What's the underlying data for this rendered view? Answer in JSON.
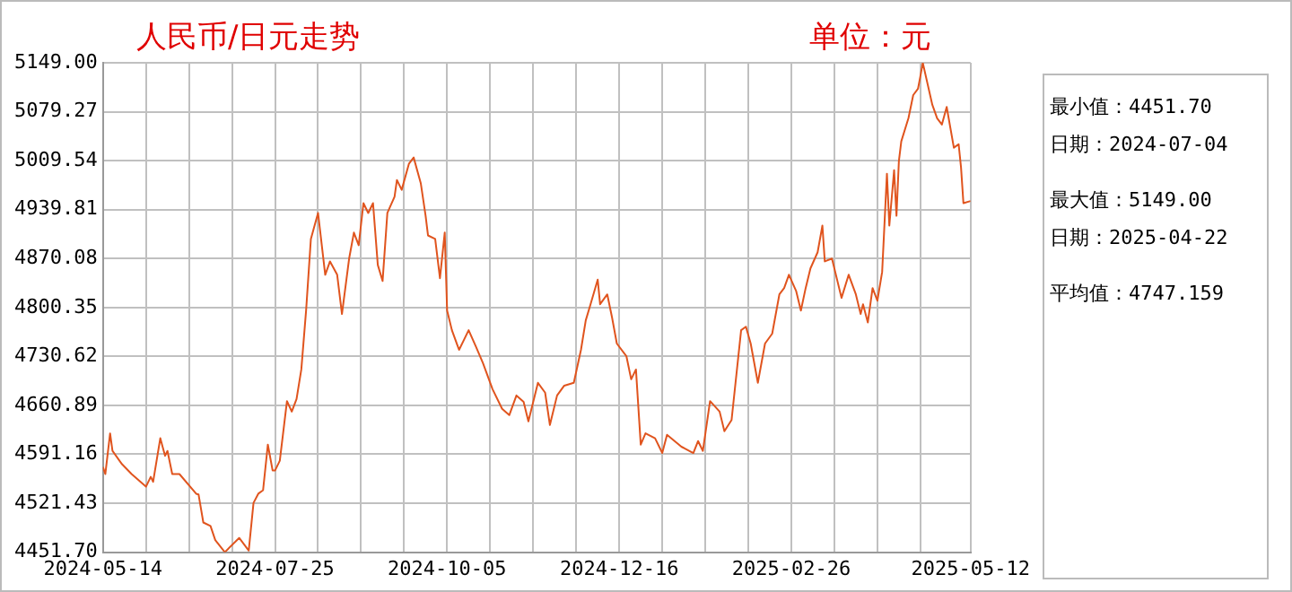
{
  "chart_data": {
    "type": "line",
    "title": "人民币/日元走势",
    "subtitle": "单位：元",
    "annotations": [
      "最小值：4451.70",
      "日期：2024-07-04",
      "最大值：5149.00",
      "日期：2025-04-22",
      "平均值：4747.159"
    ],
    "x": [
      "2024-05-14",
      "2024-05-15",
      "2024-05-17",
      "2024-05-18",
      "2024-05-22",
      "2024-05-26",
      "2024-06-01",
      "2024-06-03",
      "2024-06-04",
      "2024-06-07",
      "2024-06-09",
      "2024-06-10",
      "2024-06-12",
      "2024-06-15",
      "2024-06-22",
      "2024-06-23",
      "2024-06-25",
      "2024-06-28",
      "2024-06-30",
      "2024-07-04",
      "2024-07-10",
      "2024-07-14",
      "2024-07-16",
      "2024-07-18",
      "2024-07-20",
      "2024-07-22",
      "2024-07-24",
      "2024-07-25",
      "2024-07-27",
      "2024-07-30",
      "2024-08-01",
      "2024-08-03",
      "2024-08-05",
      "2024-08-07",
      "2024-08-09",
      "2024-08-12",
      "2024-08-15",
      "2024-08-17",
      "2024-08-20",
      "2024-08-22",
      "2024-08-25",
      "2024-08-27",
      "2024-08-29",
      "2024-08-31",
      "2024-09-02",
      "2024-09-04",
      "2024-09-06",
      "2024-09-08",
      "2024-09-10",
      "2024-09-13",
      "2024-09-14",
      "2024-09-16",
      "2024-09-19",
      "2024-09-21",
      "2024-09-24",
      "2024-09-26",
      "2024-09-27",
      "2024-09-30",
      "2024-10-02",
      "2024-10-04",
      "2024-10-05",
      "2024-10-07",
      "2024-10-10",
      "2024-10-12",
      "2024-10-14",
      "2024-10-17",
      "2024-10-20",
      "2024-10-24",
      "2024-10-28",
      "2024-10-31",
      "2024-11-03",
      "2024-11-06",
      "2024-11-08",
      "2024-11-12",
      "2024-11-15",
      "2024-11-17",
      "2024-11-20",
      "2024-11-23",
      "2024-11-27",
      "2024-11-30",
      "2024-12-02",
      "2024-12-04",
      "2024-12-07",
      "2024-12-08",
      "2024-12-11",
      "2024-12-13",
      "2024-12-15",
      "2024-12-19",
      "2024-12-21",
      "2024-12-23",
      "2024-12-25",
      "2024-12-27",
      "2024-12-31",
      "2025-01-03",
      "2025-01-05",
      "2025-01-11",
      "2025-01-16",
      "2025-01-18",
      "2025-01-20",
      "2025-01-23",
      "2025-01-27",
      "2025-01-29",
      "2025-02-01",
      "2025-02-05",
      "2025-02-07",
      "2025-02-09",
      "2025-02-12",
      "2025-02-15",
      "2025-02-18",
      "2025-02-21",
      "2025-02-23",
      "2025-02-25",
      "2025-02-28",
      "2025-03-02",
      "2025-03-04",
      "2025-03-06",
      "2025-03-09",
      "2025-03-11",
      "2025-03-12",
      "2025-03-15",
      "2025-03-19",
      "2025-03-22",
      "2025-03-25",
      "2025-03-27",
      "2025-03-28",
      "2025-03-30",
      "2025-04-01",
      "2025-04-03",
      "2025-04-05",
      "2025-04-07",
      "2025-04-08",
      "2025-04-10",
      "2025-04-11",
      "2025-04-12",
      "2025-04-13",
      "2025-04-16",
      "2025-04-18",
      "2025-04-20",
      "2025-04-21",
      "2025-04-22",
      "2025-04-26",
      "2025-04-28",
      "2025-04-30",
      "2025-05-02",
      "2025-05-05",
      "2025-05-07",
      "2025-05-08",
      "2025-05-09",
      "2025-05-12"
    ],
    "series": [
      {
        "color": "#e0541e",
        "values": [
          4573,
          4563,
          4621,
          4596,
          4577,
          4563,
          4545,
          4559,
          4552,
          4614,
          4589,
          4596,
          4563,
          4563,
          4535,
          4534,
          4494,
          4489,
          4469,
          4451.7,
          4472,
          4454,
          4522,
          4535,
          4540,
          4605,
          4568,
          4568,
          4582,
          4667,
          4652,
          4670,
          4712,
          4796,
          4898,
          4935,
          4847,
          4866,
          4847,
          4791,
          4870,
          4907,
          4889,
          4949,
          4935,
          4949,
          4861,
          4838,
          4935,
          4958,
          4982,
          4968,
          5005,
          5014,
          4977,
          4931,
          4903,
          4898,
          4842,
          4907,
          4796,
          4768,
          4740,
          4754,
          4768,
          4745,
          4721,
          4684,
          4656,
          4647,
          4675,
          4666,
          4638,
          4693,
          4679,
          4633,
          4675,
          4689,
          4693,
          4740,
          4782,
          4805,
          4840,
          4805,
          4819,
          4786,
          4749,
          4731,
          4698,
          4712,
          4605,
          4621,
          4614,
          4593,
          4619,
          4602,
          4593,
          4610,
          4596,
          4667,
          4652,
          4624,
          4640,
          4768,
          4773,
          4749,
          4693,
          4749,
          4763,
          4819,
          4828,
          4847,
          4824,
          4796,
          4828,
          4856,
          4879,
          4917,
          4866,
          4870,
          4814,
          4847,
          4819,
          4791,
          4805,
          4779,
          4828,
          4810,
          4851,
          4991,
          4917,
          4996,
          4931,
          5009,
          5037,
          5070,
          5103,
          5112,
          5130,
          5149,
          5089,
          5070,
          5061,
          5086,
          5028,
          5033,
          5000,
          4949,
          4952
        ]
      }
    ],
    "xlim": [
      "2024-05-14",
      "2025-05-12"
    ],
    "xticks": [
      "2024-05-14",
      {
        "value": "2024-06-01",
        "label": null
      },
      {
        "value": "2024-06-19",
        "label": null
      },
      {
        "value": "2024-07-07",
        "label": null
      },
      "2024-07-25",
      {
        "value": "2024-08-12",
        "label": null
      },
      {
        "value": "2024-08-30",
        "label": null
      },
      {
        "value": "2024-09-17",
        "label": null
      },
      "2024-10-05",
      {
        "value": "2024-10-23",
        "label": null
      },
      {
        "value": "2024-11-10",
        "label": null
      },
      {
        "value": "2024-11-28",
        "label": null
      },
      "2024-12-16",
      {
        "value": "2025-01-03",
        "label": null
      },
      {
        "value": "2025-01-21",
        "label": null
      },
      {
        "value": "2025-02-08",
        "label": null
      },
      "2025-02-26",
      {
        "value": "2025-03-16",
        "label": null
      },
      {
        "value": "2025-04-03",
        "label": null
      },
      {
        "value": "2025-04-21",
        "label": null
      },
      "2025-05-12"
    ],
    "ylim": [
      4451.7,
      5149
    ],
    "yticks": [
      {
        "value": 4451.7,
        "label": "4451.70"
      },
      {
        "value": 4521.43,
        "label": "4521.43"
      },
      {
        "value": 4591.16,
        "label": "4591.16"
      },
      {
        "value": 4660.89,
        "label": "4660.89"
      },
      {
        "value": 4730.62,
        "label": "4730.62"
      },
      {
        "value": 4800.35,
        "label": "4800.35"
      },
      {
        "value": 4870.08,
        "label": "4870.08"
      },
      {
        "value": 4939.81,
        "label": "4939.81"
      },
      {
        "value": 5009.54,
        "label": "5009.54"
      },
      {
        "value": 5079.27,
        "label": "5079.27"
      },
      {
        "value": 5149,
        "label": "5149.00"
      }
    ],
    "grid": true,
    "legend": false,
    "marker": "none",
    "line_style": "solid"
  }
}
